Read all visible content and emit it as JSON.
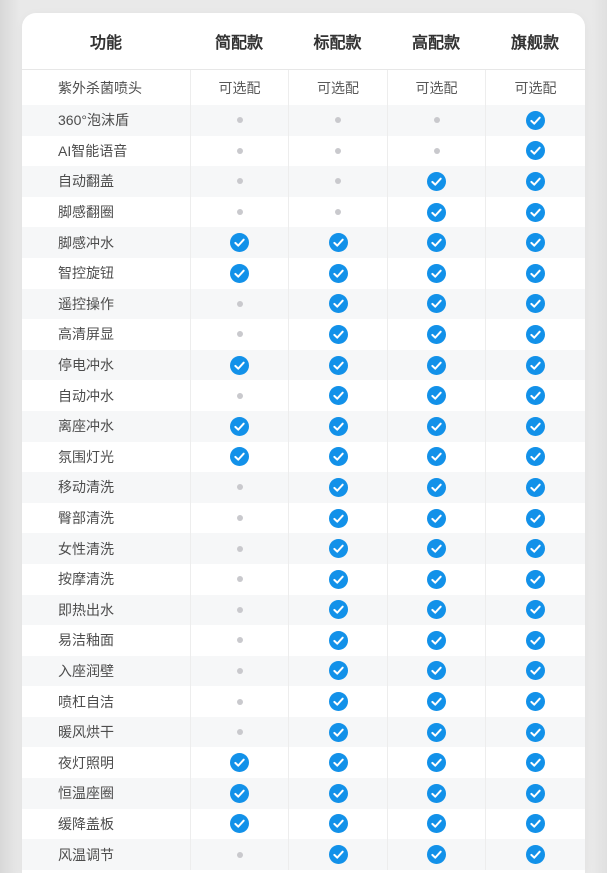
{
  "colors": {
    "page-bg": "#e9e9e9",
    "page-edge": "#d8d8d8",
    "card-bg": "#ffffff",
    "stripe": "#f6f7f8",
    "divider": "#ededed",
    "header-divider": "#e7e7e7",
    "header-text": "#333333",
    "label-text": "#4d4d4d",
    "value-text": "#595959",
    "check-blue": "#1291e9",
    "dot-gray": "#c9c9cd"
  },
  "icons": {
    "included": "check-icon",
    "not_included": "dot-icon"
  },
  "table": {
    "header": {
      "feature_col": "功能",
      "models": [
        "简配款",
        "标配款",
        "高配款",
        "旗舰款"
      ]
    },
    "optional_label": "可选配",
    "rows": [
      {
        "feature": "紫外杀菌喷头",
        "values": [
          "optional",
          "optional",
          "optional",
          "optional"
        ]
      },
      {
        "feature": "360°泡沫盾",
        "values": [
          "no",
          "no",
          "no",
          "yes"
        ]
      },
      {
        "feature": "AI智能语音",
        "values": [
          "no",
          "no",
          "no",
          "yes"
        ]
      },
      {
        "feature": "自动翻盖",
        "values": [
          "no",
          "no",
          "yes",
          "yes"
        ]
      },
      {
        "feature": "脚感翻圈",
        "values": [
          "no",
          "no",
          "yes",
          "yes"
        ]
      },
      {
        "feature": "脚感冲水",
        "values": [
          "yes",
          "yes",
          "yes",
          "yes"
        ]
      },
      {
        "feature": "智控旋钮",
        "values": [
          "yes",
          "yes",
          "yes",
          "yes"
        ]
      },
      {
        "feature": "遥控操作",
        "values": [
          "no",
          "yes",
          "yes",
          "yes"
        ]
      },
      {
        "feature": "高清屏显",
        "values": [
          "no",
          "yes",
          "yes",
          "yes"
        ]
      },
      {
        "feature": "停电冲水",
        "values": [
          "yes",
          "yes",
          "yes",
          "yes"
        ]
      },
      {
        "feature": "自动冲水",
        "values": [
          "no",
          "yes",
          "yes",
          "yes"
        ]
      },
      {
        "feature": "离座冲水",
        "values": [
          "yes",
          "yes",
          "yes",
          "yes"
        ]
      },
      {
        "feature": "氛围灯光",
        "values": [
          "yes",
          "yes",
          "yes",
          "yes"
        ]
      },
      {
        "feature": "移动清洗",
        "values": [
          "no",
          "yes",
          "yes",
          "yes"
        ]
      },
      {
        "feature": "臀部清洗",
        "values": [
          "no",
          "yes",
          "yes",
          "yes"
        ]
      },
      {
        "feature": "女性清洗",
        "values": [
          "no",
          "yes",
          "yes",
          "yes"
        ]
      },
      {
        "feature": "按摩清洗",
        "values": [
          "no",
          "yes",
          "yes",
          "yes"
        ]
      },
      {
        "feature": "即热出水",
        "values": [
          "no",
          "yes",
          "yes",
          "yes"
        ]
      },
      {
        "feature": "易洁釉面",
        "values": [
          "no",
          "yes",
          "yes",
          "yes"
        ]
      },
      {
        "feature": "入座润壁",
        "values": [
          "no",
          "yes",
          "yes",
          "yes"
        ]
      },
      {
        "feature": "喷杠自洁",
        "values": [
          "no",
          "yes",
          "yes",
          "yes"
        ]
      },
      {
        "feature": "暖风烘干",
        "values": [
          "no",
          "yes",
          "yes",
          "yes"
        ]
      },
      {
        "feature": "夜灯照明",
        "values": [
          "yes",
          "yes",
          "yes",
          "yes"
        ]
      },
      {
        "feature": "恒温座圈",
        "values": [
          "yes",
          "yes",
          "yes",
          "yes"
        ]
      },
      {
        "feature": "缓降盖板",
        "values": [
          "yes",
          "yes",
          "yes",
          "yes"
        ]
      },
      {
        "feature": "风温调节",
        "values": [
          "no",
          "yes",
          "yes",
          "yes"
        ]
      }
    ]
  }
}
